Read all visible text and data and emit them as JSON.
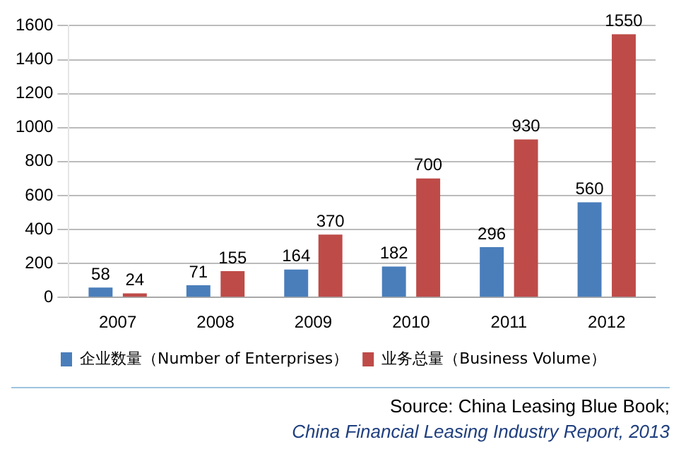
{
  "chart_data": {
    "type": "bar",
    "categories": [
      "2007",
      "2008",
      "2009",
      "2010",
      "2011",
      "2012"
    ],
    "series": [
      {
        "name": "企业数量（Number of Enterprises）",
        "color": "#4a7ebb",
        "values": [
          58,
          71,
          164,
          182,
          296,
          560
        ]
      },
      {
        "name": "业务总量（Business Volume）",
        "color": "#be4b48",
        "values": [
          24,
          155,
          370,
          700,
          930,
          1550
        ]
      }
    ],
    "ylim": [
      0,
      1600
    ],
    "yticks": [
      0,
      200,
      400,
      600,
      800,
      1000,
      1200,
      1400,
      1600
    ],
    "grid": "y",
    "legend": "bottom",
    "data_labels": true,
    "annotations": [
      "Source: China Leasing Blue Book;",
      "China Financial Leasing Industry Report, 2013"
    ]
  }
}
